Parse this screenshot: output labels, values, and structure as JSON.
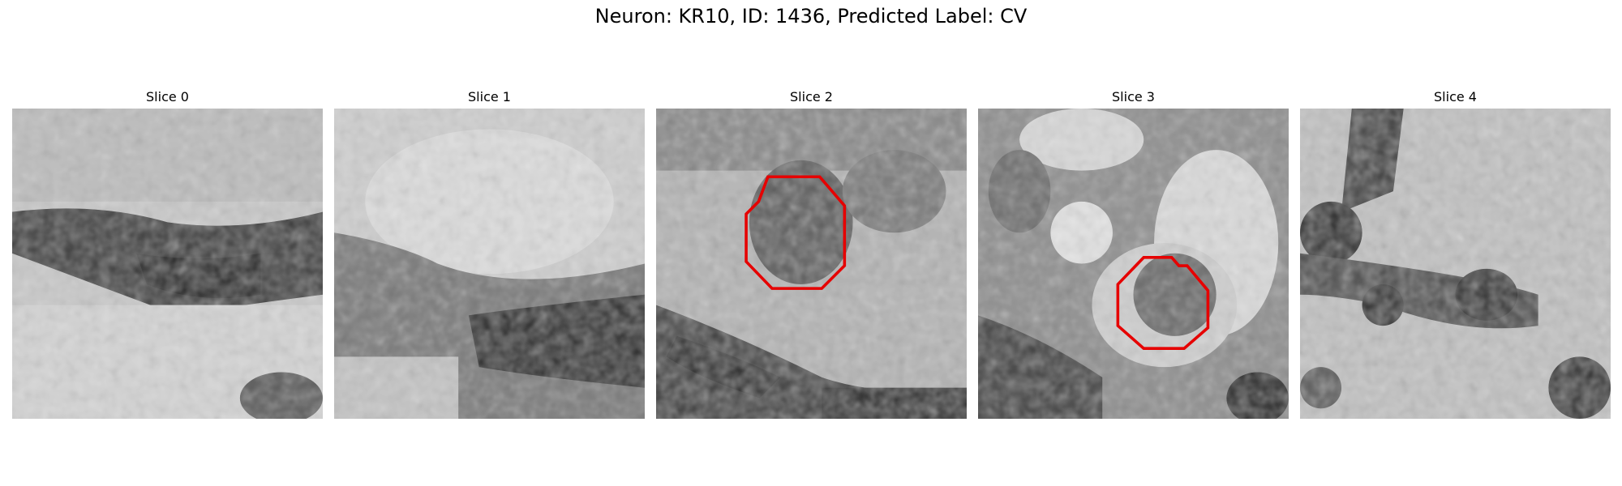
{
  "figure": {
    "title": "Neuron: KR10, ID: 1436, Predicted Label: CV"
  },
  "panels": [
    {
      "title": "Slice 0",
      "contour": false
    },
    {
      "title": "Slice 1",
      "contour": false
    },
    {
      "title": "Slice 2",
      "contour": true
    },
    {
      "title": "Slice 3",
      "contour": true
    },
    {
      "title": "Slice 4",
      "contour": false
    }
  ],
  "colors": {
    "contour": "#e60000",
    "background": "#ffffff"
  }
}
